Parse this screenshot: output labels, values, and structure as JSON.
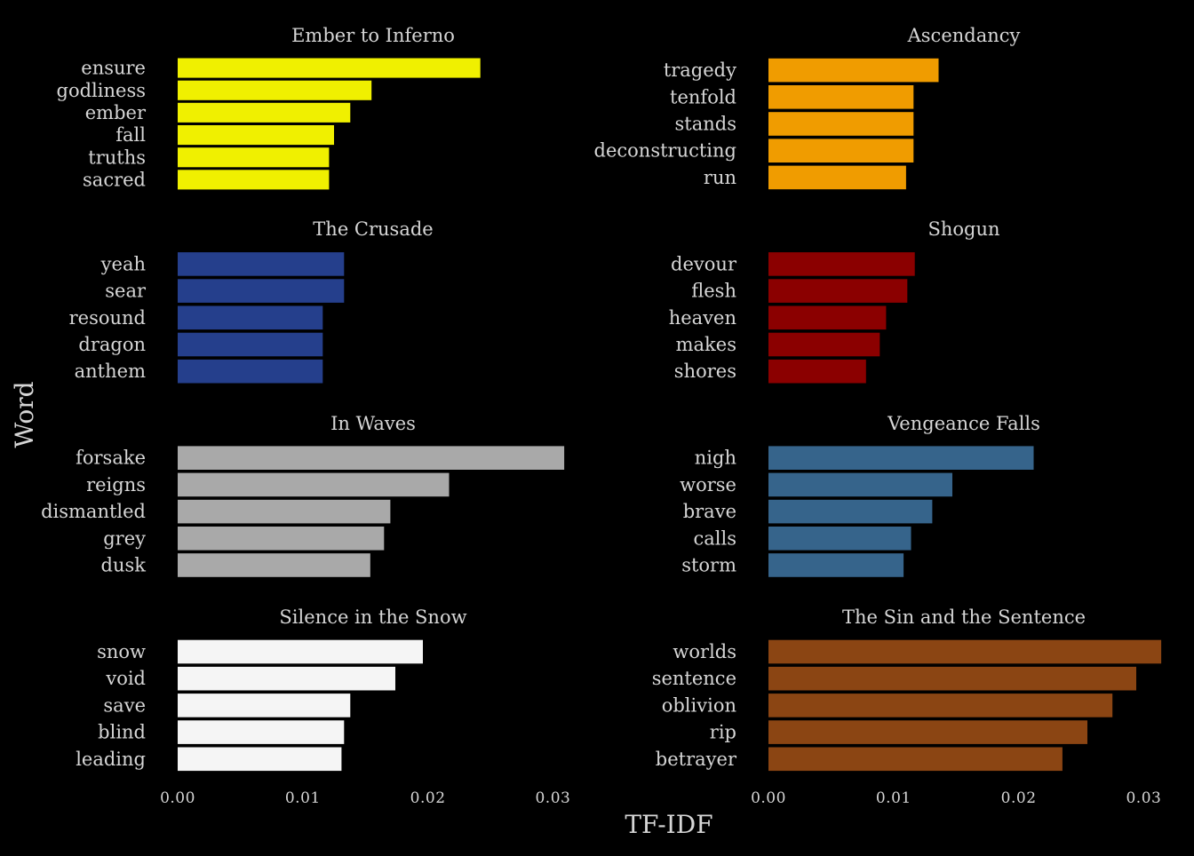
{
  "chart_data": {
    "type": "bar",
    "orientation": "horizontal",
    "facet_layout": "2 columns x 4 rows",
    "xlabel": "TF-IDF",
    "ylabel": "Word",
    "xlim": [
      0,
      0.031
    ],
    "x_ticks": [
      0,
      0.01,
      0.02,
      0.03
    ],
    "x_tick_labels": [
      "0.00",
      "0.01",
      "0.02",
      "0.03"
    ],
    "background": "#000000",
    "text_color": "#d6d6d6",
    "grid": false,
    "legend": "none",
    "panels": [
      {
        "title": "Ember to Inferno",
        "color": "#f0f000",
        "categories": [
          "ensure",
          "godliness",
          "ember",
          "fall",
          "truths",
          "sacred"
        ],
        "values": [
          0.0242,
          0.0155,
          0.0138,
          0.0125,
          0.0121,
          0.0121
        ]
      },
      {
        "title": "Ascendancy",
        "color": "#f09c00",
        "categories": [
          "tragedy",
          "tenfold",
          "stands",
          "deconstructing",
          "run"
        ],
        "values": [
          0.0136,
          0.0116,
          0.0116,
          0.0116,
          0.011
        ]
      },
      {
        "title": "The Crusade",
        "color": "#253f8c",
        "categories": [
          "yeah",
          "sear",
          "resound",
          "dragon",
          "anthem"
        ],
        "values": [
          0.0133,
          0.0133,
          0.0116,
          0.0116,
          0.0116
        ]
      },
      {
        "title": "Shogun",
        "color": "#8b0000",
        "categories": [
          "devour",
          "flesh",
          "heaven",
          "makes",
          "shores"
        ],
        "values": [
          0.0117,
          0.0111,
          0.0094,
          0.0089,
          0.0078
        ]
      },
      {
        "title": "In Waves",
        "color": "#a9a9a9",
        "categories": [
          "forsake",
          "reigns",
          "dismantled",
          "grey",
          "dusk"
        ],
        "values": [
          0.0309,
          0.0217,
          0.017,
          0.0165,
          0.0154
        ]
      },
      {
        "title": "Vengeance Falls",
        "color": "#36648b",
        "categories": [
          "nigh",
          "worse",
          "brave",
          "calls",
          "storm"
        ],
        "values": [
          0.0212,
          0.0147,
          0.0131,
          0.0114,
          0.0108
        ]
      },
      {
        "title": "Silence in the Snow",
        "color": "#f5f5f5",
        "categories": [
          "snow",
          "void",
          "save",
          "blind",
          "leading"
        ],
        "values": [
          0.0196,
          0.0174,
          0.0138,
          0.0133,
          0.0131
        ]
      },
      {
        "title": "The Sin and the Sentence",
        "color": "#8b4513",
        "categories": [
          "worlds",
          "sentence",
          "oblivion",
          "rip",
          "betrayer"
        ],
        "values": [
          0.0314,
          0.0294,
          0.0275,
          0.0255,
          0.0235
        ]
      }
    ]
  }
}
